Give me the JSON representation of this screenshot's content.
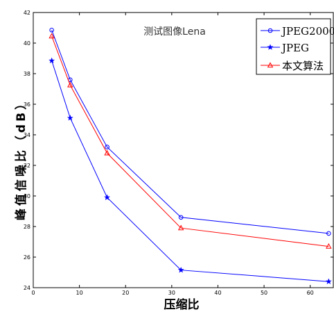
{
  "chart_data": {
    "type": "line",
    "annotation": "测试图像Lena",
    "xlabel": "压缩比",
    "ylabel": "峰值信噪比（dB）",
    "xlim": [
      0,
      65
    ],
    "ylim": [
      24,
      42
    ],
    "xticks": [
      0,
      10,
      20,
      30,
      40,
      50,
      60
    ],
    "yticks": [
      24,
      26,
      28,
      30,
      32,
      34,
      36,
      38,
      40,
      42
    ],
    "grid": false,
    "legend_position": "top-right",
    "x": [
      4,
      8,
      16,
      32,
      64
    ],
    "series": [
      {
        "name": "JPEG2000",
        "values": [
          40.85,
          37.6,
          33.2,
          28.6,
          27.55
        ],
        "color": "#0000ff",
        "marker": "circle"
      },
      {
        "name": "JPEG",
        "values": [
          38.85,
          35.1,
          29.9,
          25.15,
          24.4
        ],
        "color": "#0000ff",
        "marker": "star"
      },
      {
        "name": "本文算法",
        "values": [
          40.45,
          37.25,
          32.8,
          27.9,
          26.7
        ],
        "color": "#ff0000",
        "marker": "triangle"
      }
    ]
  }
}
